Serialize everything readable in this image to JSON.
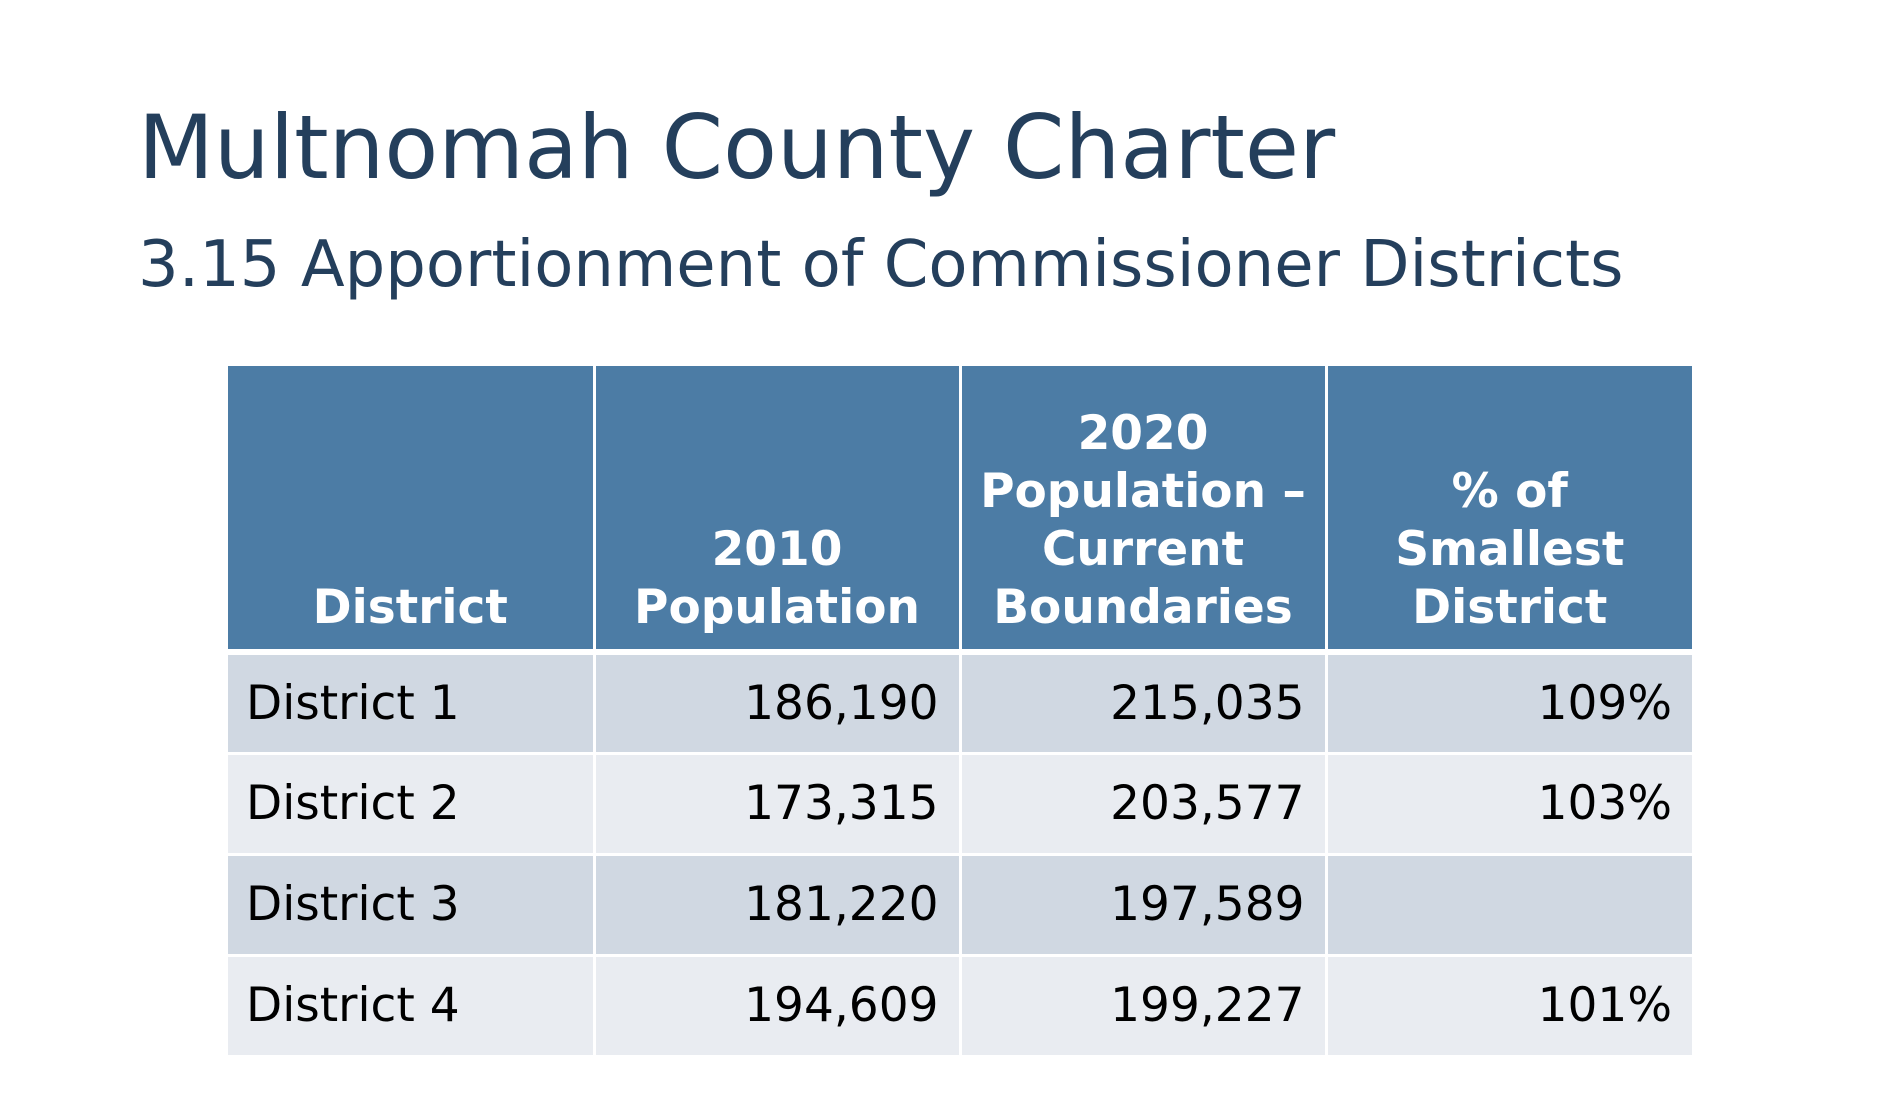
{
  "title": "Multnomah County Charter",
  "subtitle": "3.15 Apportionment of Commissioner Districts",
  "table": {
    "headers": [
      "District",
      "2010 Population",
      "2020 Population – Current Boundaries",
      "% of Smallest District"
    ],
    "rows": [
      [
        "District 1",
        "186,190",
        "215,035",
        "109%"
      ],
      [
        "District 2",
        "173,315",
        "203,577",
        "103%"
      ],
      [
        "District 3",
        "181,220",
        "197,589",
        ""
      ],
      [
        "District 4",
        "194,609",
        "199,227",
        "101%"
      ]
    ]
  },
  "colors": {
    "title": "#243f5c",
    "header_background": "#4c7ca5",
    "row_dark": "#d0d8e2",
    "row_light": "#e9ecf1"
  }
}
